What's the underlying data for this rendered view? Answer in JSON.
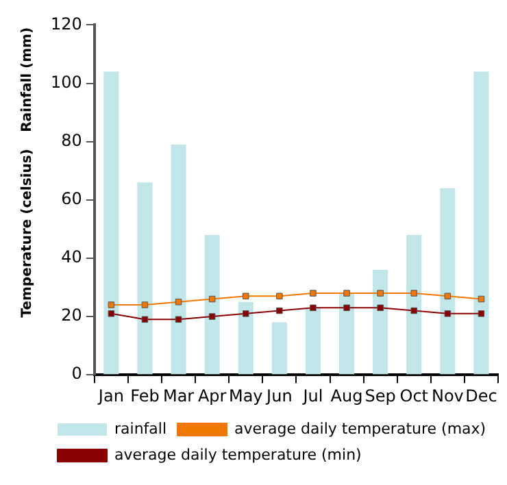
{
  "chart_data": {
    "type": "bar",
    "ylabel": "Rainfall (mm)",
    "annotations": [
      "Temperature (celsius)"
    ],
    "categories": [
      "Jan",
      "Feb",
      "Mar",
      "Apr",
      "May",
      "Jun",
      "Jul",
      "Aug",
      "Sep",
      "Oct",
      "Nov",
      "Dec"
    ],
    "series": [
      {
        "name": "rainfall",
        "color": "#c0e6ea",
        "values": [
          104,
          66,
          79,
          48,
          25,
          18,
          23,
          28,
          36,
          48,
          64,
          104
        ]
      },
      {
        "name": "average daily temperature (max)",
        "type": "line",
        "color": "#f07800",
        "values": [
          24,
          24,
          25,
          26,
          27,
          27,
          28,
          28,
          28,
          28,
          27,
          26
        ]
      },
      {
        "name": "average daily temperature (min)",
        "type": "line",
        "color": "#8b0000",
        "values": [
          21,
          19,
          19,
          20,
          21,
          22,
          23,
          23,
          23,
          22,
          21,
          21
        ]
      }
    ],
    "ylim": [
      0,
      120
    ],
    "yticks": [
      0,
      20,
      40,
      60,
      80,
      100,
      120
    ],
    "grid": false,
    "legend": "bottom",
    "marker": "square"
  }
}
